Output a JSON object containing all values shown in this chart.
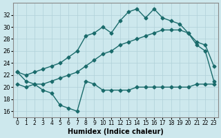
{
  "title": "",
  "xlabel": "Humidex (Indice chaleur)",
  "ylabel": "",
  "bg_color": "#cde8ed",
  "line_color": "#1a6b6b",
  "ylim": [
    15,
    34
  ],
  "yticks": [
    16,
    18,
    20,
    22,
    24,
    26,
    28,
    30,
    32
  ],
  "xlim": [
    -0.5,
    23.5
  ],
  "xticks": [
    0,
    1,
    2,
    3,
    4,
    5,
    6,
    7,
    8,
    9,
    10,
    11,
    12,
    13,
    14,
    15,
    16,
    17,
    18,
    19,
    20,
    21,
    22,
    23
  ],
  "series1_x": [
    0,
    1,
    2,
    3,
    4,
    5,
    6,
    7,
    8,
    9,
    10,
    11,
    12,
    13,
    14,
    15,
    16,
    17,
    18,
    19,
    20,
    21,
    22,
    23
  ],
  "series1_y": [
    22.5,
    22.0,
    22.5,
    23.0,
    23.5,
    24.0,
    25.0,
    26.0,
    28.5,
    29.0,
    30.0,
    29.0,
    31.0,
    32.5,
    33.0,
    31.5,
    33.0,
    31.5,
    31.0,
    30.5,
    29.0,
    27.5,
    27.0,
    23.5
  ],
  "series2_x": [
    0,
    1,
    2,
    3,
    4,
    5,
    6,
    7,
    8,
    9,
    10,
    11,
    12,
    13,
    14,
    15,
    16,
    17,
    18,
    19,
    20,
    21,
    22,
    23
  ],
  "series2_y": [
    22.5,
    21.0,
    20.5,
    20.5,
    21.0,
    21.5,
    22.0,
    22.5,
    23.5,
    24.5,
    25.5,
    26.0,
    27.0,
    27.5,
    28.0,
    28.5,
    29.0,
    29.5,
    29.5,
    29.5,
    29.0,
    27.0,
    26.0,
    21.0
  ],
  "series3_x": [
    0,
    1,
    2,
    3,
    4,
    5,
    6,
    7,
    8,
    9,
    10,
    11,
    12,
    13,
    14,
    15,
    16,
    17,
    18,
    19,
    20,
    21,
    22,
    23
  ],
  "series3_y": [
    20.5,
    20.0,
    20.5,
    19.5,
    19.0,
    17.0,
    16.5,
    16.0,
    21.0,
    20.5,
    19.5,
    19.5,
    19.5,
    19.5,
    20.0,
    20.0,
    20.0,
    20.0,
    20.0,
    20.0,
    20.0,
    20.5,
    20.5,
    20.5
  ]
}
